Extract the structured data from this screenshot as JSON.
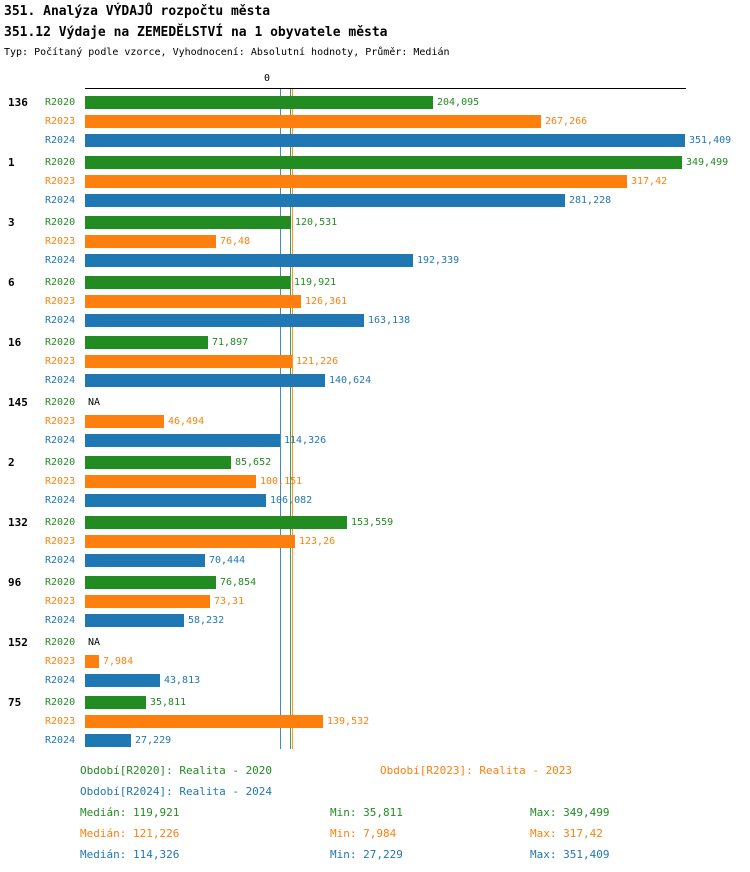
{
  "header": {
    "title": "351. Analýza VÝDAJŮ rozpočtu města",
    "subtitle": "351.12 Výdaje na ZEMEDĚLSTVÍ na 1 obyvatele města",
    "meta": "Typ: Počítaný podle vzorce, Vyhodnocení: Absolutní hodnoty, Průměr: Medián"
  },
  "axis": {
    "zero_label": "0",
    "x_max": 351.409
  },
  "colors": {
    "r2020": "#228B22",
    "r2023": "#FF7F0E",
    "r2024": "#1F77B4",
    "na_text": "#000000",
    "axis": "#000000"
  },
  "chart_data": {
    "type": "bar",
    "orientation": "horizontal",
    "series": [
      "R2020",
      "R2023",
      "R2024"
    ],
    "xlim": [
      0,
      351.409
    ],
    "legend_position": "bottom",
    "groups": [
      {
        "id": "136",
        "values": [
          {
            "period": "R2020",
            "label": "204,095",
            "value": 204.095
          },
          {
            "period": "R2023",
            "label": "267,266",
            "value": 267.266
          },
          {
            "period": "R2024",
            "label": "351,409",
            "value": 351.409
          }
        ]
      },
      {
        "id": "1",
        "values": [
          {
            "period": "R2020",
            "label": "349,499",
            "value": 349.499
          },
          {
            "period": "R2023",
            "label": "317,42",
            "value": 317.42
          },
          {
            "period": "R2024",
            "label": "281,228",
            "value": 281.228
          }
        ]
      },
      {
        "id": "3",
        "values": [
          {
            "period": "R2020",
            "label": "120,531",
            "value": 120.531
          },
          {
            "period": "R2023",
            "label": "76,48",
            "value": 76.48
          },
          {
            "period": "R2024",
            "label": "192,339",
            "value": 192.339
          }
        ]
      },
      {
        "id": "6",
        "values": [
          {
            "period": "R2020",
            "label": "119,921",
            "value": 119.921
          },
          {
            "period": "R2023",
            "label": "126,361",
            "value": 126.361
          },
          {
            "period": "R2024",
            "label": "163,138",
            "value": 163.138
          }
        ]
      },
      {
        "id": "16",
        "values": [
          {
            "period": "R2020",
            "label": "71,897",
            "value": 71.897
          },
          {
            "period": "R2023",
            "label": "121,226",
            "value": 121.226
          },
          {
            "period": "R2024",
            "label": "140,624",
            "value": 140.624
          }
        ]
      },
      {
        "id": "145",
        "values": [
          {
            "period": "R2020",
            "label": "NA",
            "value": null
          },
          {
            "period": "R2023",
            "label": "46,494",
            "value": 46.494
          },
          {
            "period": "R2024",
            "label": "114,326",
            "value": 114.326
          }
        ]
      },
      {
        "id": "2",
        "values": [
          {
            "period": "R2020",
            "label": "85,652",
            "value": 85.652
          },
          {
            "period": "R2023",
            "label": "100,151",
            "value": 100.151
          },
          {
            "period": "R2024",
            "label": "106,082",
            "value": 106.082
          }
        ]
      },
      {
        "id": "132",
        "values": [
          {
            "period": "R2020",
            "label": "153,559",
            "value": 153.559
          },
          {
            "period": "R2023",
            "label": "123,26",
            "value": 123.26
          },
          {
            "period": "R2024",
            "label": "70,444",
            "value": 70.444
          }
        ]
      },
      {
        "id": "96",
        "values": [
          {
            "period": "R2020",
            "label": "76,854",
            "value": 76.854
          },
          {
            "period": "R2023",
            "label": "73,31",
            "value": 73.31
          },
          {
            "period": "R2024",
            "label": "58,232",
            "value": 58.232
          }
        ]
      },
      {
        "id": "152",
        "values": [
          {
            "period": "R2020",
            "label": "NA",
            "value": null
          },
          {
            "period": "R2023",
            "label": "7,984",
            "value": 7.984
          },
          {
            "period": "R2024",
            "label": "43,813",
            "value": 43.813
          }
        ]
      },
      {
        "id": "75",
        "values": [
          {
            "period": "R2020",
            "label": "35,811",
            "value": 35.811
          },
          {
            "period": "R2023",
            "label": "139,532",
            "value": 139.532
          },
          {
            "period": "R2024",
            "label": "27,229",
            "value": 27.229
          }
        ]
      }
    ],
    "medians": [
      {
        "period": "R2020",
        "value": 119.921
      },
      {
        "period": "R2023",
        "value": 121.226
      },
      {
        "period": "R2024",
        "value": 114.326
      }
    ]
  },
  "legend": {
    "r2020": "Období[R2020]: Realita - 2020",
    "r2023": "Období[R2023]: Realita - 2023",
    "r2024": "Období[R2024]: Realita - 2024"
  },
  "stats": [
    {
      "period": "R2020",
      "median": "Medián: 119,921",
      "min": "Min: 35,811",
      "max": "Max: 349,499"
    },
    {
      "period": "R2023",
      "median": "Medián: 121,226",
      "min": "Min: 7,984",
      "max": "Max: 317,42"
    },
    {
      "period": "R2024",
      "median": "Medián: 114,326",
      "min": "Min: 27,229",
      "max": "Max: 351,409"
    }
  ]
}
